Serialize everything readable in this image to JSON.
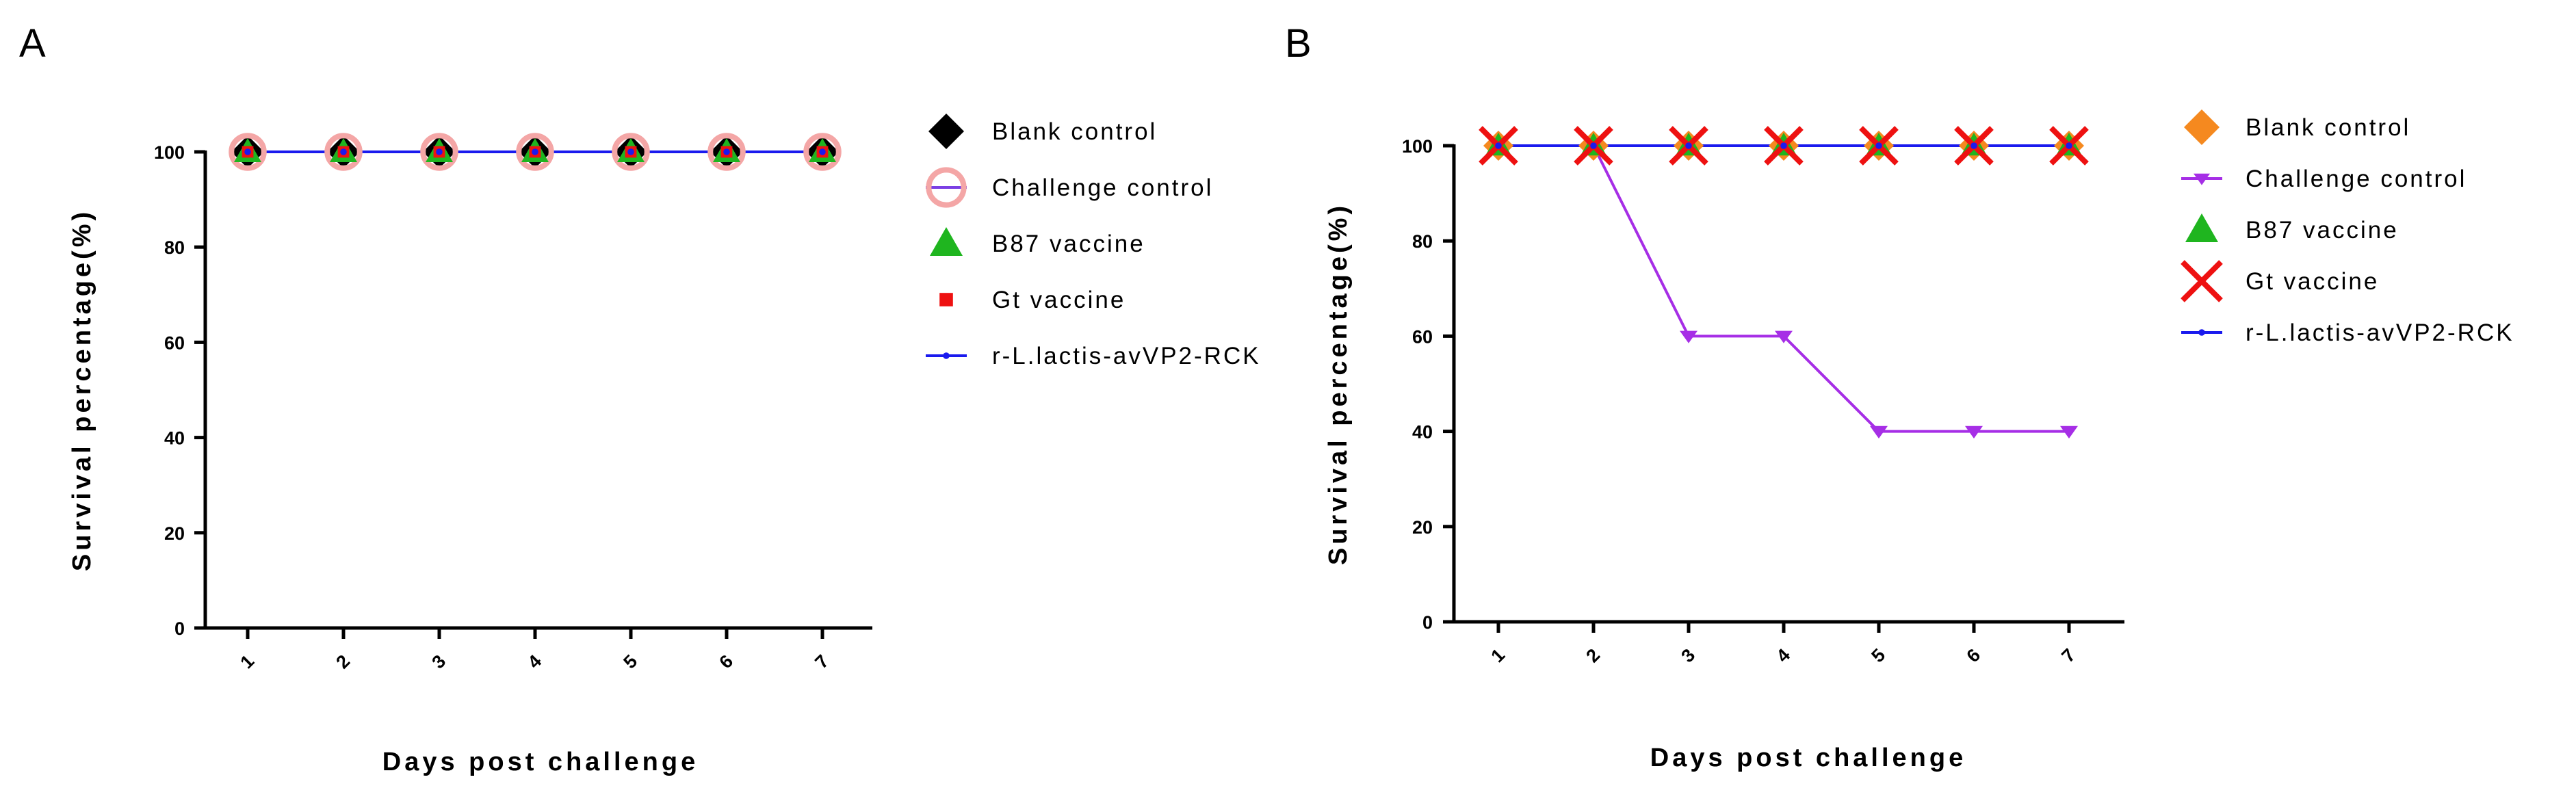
{
  "chart_data": [
    {
      "panel": "A",
      "type": "line",
      "xlabel": "Days post challenge",
      "ylabel": "Survival percentage(%)",
      "categories": [
        1,
        2,
        3,
        4,
        5,
        6,
        7
      ],
      "yticks": [
        0,
        20,
        40,
        60,
        80,
        100
      ],
      "ylim": [
        0,
        100
      ],
      "series": [
        {
          "name": "Blank control",
          "values": [
            100,
            100,
            100,
            100,
            100,
            100,
            100
          ],
          "color": "#000000",
          "marker": "diamond"
        },
        {
          "name": "Challenge control",
          "values": [
            100,
            100,
            100,
            100,
            100,
            100,
            100
          ],
          "color": "#7b3fe4",
          "marker": "open-circle",
          "marker_color": "#f4a6a6"
        },
        {
          "name": "B87 vaccine",
          "values": [
            100,
            100,
            100,
            100,
            100,
            100,
            100
          ],
          "color": "#1fb51f",
          "marker": "triangle-up"
        },
        {
          "name": "Gt vaccine",
          "values": [
            100,
            100,
            100,
            100,
            100,
            100,
            100
          ],
          "color": "#ee1111",
          "marker": "square"
        },
        {
          "name": "r-L.lactis-avVP2-RCK",
          "values": [
            100,
            100,
            100,
            100,
            100,
            100,
            100
          ],
          "color": "#1a1aee",
          "marker": "small-dot"
        }
      ]
    },
    {
      "panel": "B",
      "type": "line",
      "xlabel": "Days post challenge",
      "ylabel": "Survival percentage(%)",
      "categories": [
        1,
        2,
        3,
        4,
        5,
        6,
        7
      ],
      "yticks": [
        0,
        20,
        40,
        60,
        80,
        100
      ],
      "ylim": [
        0,
        100
      ],
      "series": [
        {
          "name": "Blank control",
          "values": [
            100,
            100,
            100,
            100,
            100,
            100,
            100
          ],
          "color": "#f5891f",
          "marker": "diamond"
        },
        {
          "name": "Challenge control",
          "values": [
            100,
            100,
            60,
            60,
            40,
            40,
            40
          ],
          "color": "#a62ee6",
          "marker": "triangle-down"
        },
        {
          "name": "B87 vaccine",
          "values": [
            100,
            100,
            100,
            100,
            100,
            100,
            100
          ],
          "color": "#1fb51f",
          "marker": "triangle-up"
        },
        {
          "name": "Gt vaccine",
          "values": [
            100,
            100,
            100,
            100,
            100,
            100,
            100
          ],
          "color": "#ee1111",
          "marker": "x"
        },
        {
          "name": "r-L.lactis-avVP2-RCK",
          "values": [
            100,
            100,
            100,
            100,
            100,
            100,
            100
          ],
          "color": "#1a1aee",
          "marker": "small-dot"
        }
      ]
    }
  ],
  "panels": {
    "a_label": "A",
    "b_label": "B"
  }
}
